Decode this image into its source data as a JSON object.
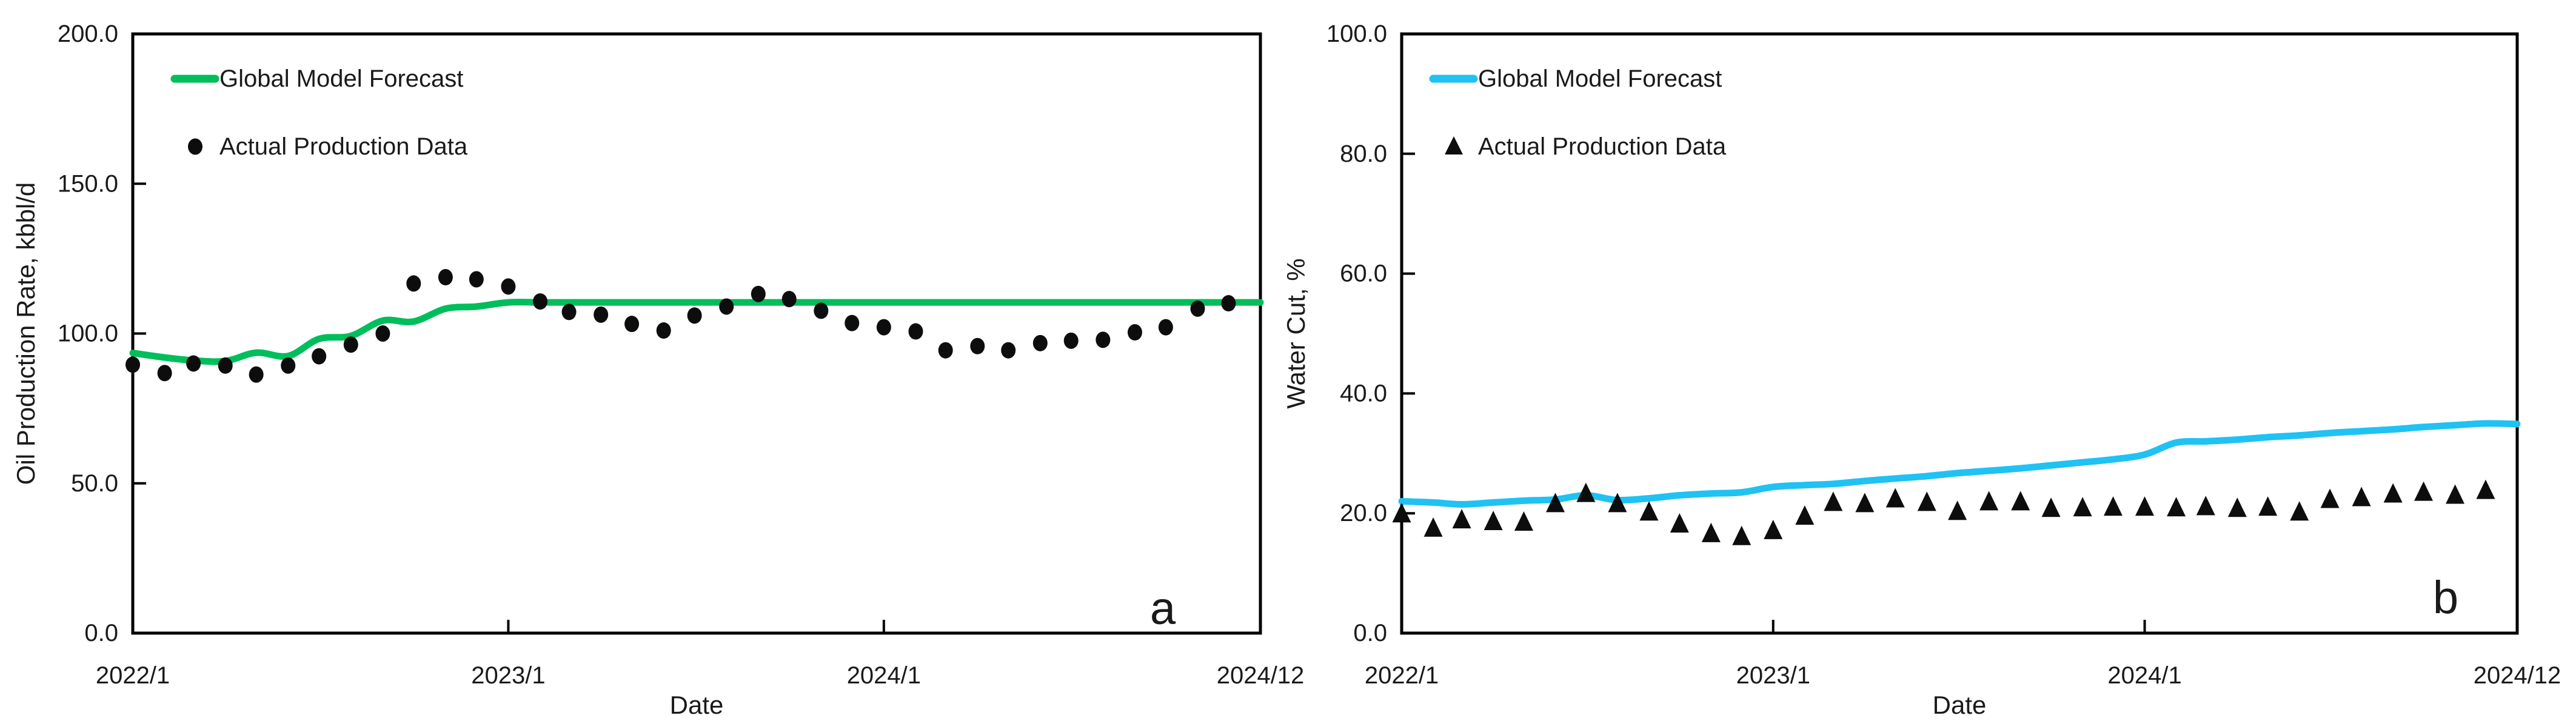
{
  "page": {
    "background": "#ffffff",
    "text_color": "#1a1a1a",
    "axis_color": "#000000"
  },
  "chart_data": [
    {
      "id": "a",
      "type": "line+scatter",
      "panel_label": "a",
      "xlabel": "Date",
      "ylabel": "Oil Production Rate, kbbl/d",
      "x_axis": {
        "start_month": "2022/1",
        "end_month": "2024/12",
        "n_points": 36,
        "tick_indices": [
          0,
          12,
          24,
          35
        ],
        "tick_labels": [
          "2022/1",
          "2023/1",
          "2024/1",
          "2024/12"
        ],
        "inner_tick_indices": [
          12,
          24
        ]
      },
      "y_axis": {
        "min": 0,
        "max": 200,
        "step": 50,
        "tick_labels": [
          "0.0",
          "50.0",
          "100.0",
          "150.0",
          "200.0"
        ],
        "inner_tick_values": [
          50,
          100,
          150
        ]
      },
      "legend": [
        {
          "label": "Global Model Forecast",
          "marker": "line",
          "color": "#00be5b"
        },
        {
          "label": "Actual Production Data",
          "marker": "circle",
          "color": "#0d0d0d"
        }
      ],
      "series": [
        {
          "name": "Global Model Forecast",
          "style": "line",
          "color": "#00be5b",
          "values": [
            93.5,
            92.0,
            91.0,
            90.8,
            93.6,
            92.5,
            98.2,
            99.2,
            104.3,
            104.0,
            108.3,
            109.0,
            110.4,
            110.4,
            110.4,
            110.4,
            110.4,
            110.4,
            110.4,
            110.4,
            110.4,
            110.4,
            110.4,
            110.4,
            110.4,
            110.4,
            110.4,
            110.4,
            110.4,
            110.4,
            110.4,
            110.4,
            110.4,
            110.4,
            110.4,
            110.4
          ],
          "edge_value": 110.4
        },
        {
          "name": "Actual Production Data",
          "style": "scatter-circle",
          "color": "#0d0d0d",
          "values": [
            89.6,
            86.8,
            90.0,
            89.3,
            86.3,
            89.3,
            92.4,
            96.3,
            100.0,
            116.7,
            118.8,
            118.1,
            115.7,
            110.7,
            107.2,
            106.3,
            103.2,
            101.0,
            106.0,
            109.0,
            113.2,
            111.5,
            107.6,
            103.5,
            102.1,
            100.7,
            94.4,
            95.8,
            94.4,
            96.8,
            97.6,
            97.9,
            100.4,
            102.1,
            108.3,
            110.1
          ]
        }
      ]
    },
    {
      "id": "b",
      "type": "line+scatter",
      "panel_label": "b",
      "xlabel": "Date",
      "ylabel": "Water Cut, %",
      "x_axis": {
        "start_month": "2022/1",
        "end_month": "2024/12",
        "n_points": 36,
        "tick_indices": [
          0,
          12,
          24,
          35
        ],
        "tick_labels": [
          "2022/1",
          "2023/1",
          "2024/1",
          "2024/12"
        ],
        "inner_tick_indices": [
          12,
          24
        ]
      },
      "y_axis": {
        "min": 0,
        "max": 100,
        "step": 20,
        "tick_labels": [
          "0.0",
          "20.0",
          "40.0",
          "60.0",
          "80.0",
          "100.0"
        ],
        "inner_tick_values": [
          20,
          40,
          60,
          80
        ]
      },
      "legend": [
        {
          "label": "Global Model Forecast",
          "marker": "line",
          "color": "#1fc2f2"
        },
        {
          "label": "Actual Production Data",
          "marker": "triangle",
          "color": "#0d0d0d"
        }
      ],
      "series": [
        {
          "name": "Global Model Forecast",
          "style": "line",
          "color": "#1fc2f2",
          "values": [
            22.0,
            21.8,
            21.5,
            21.8,
            22.1,
            22.3,
            23.0,
            22.2,
            22.5,
            23.0,
            23.3,
            23.5,
            24.4,
            24.7,
            24.9,
            25.4,
            25.8,
            26.2,
            26.7,
            27.1,
            27.5,
            28.0,
            28.5,
            29.0,
            29.8,
            31.8,
            32.0,
            32.3,
            32.7,
            33.0,
            33.4,
            33.7,
            34.0,
            34.4,
            34.7,
            35.0
          ],
          "edge_value": 34.9
        },
        {
          "name": "Actual Production Data",
          "style": "scatter-triangle",
          "color": "#0d0d0d",
          "values": [
            19.9,
            17.5,
            18.9,
            18.6,
            18.5,
            21.6,
            23.3,
            21.6,
            20.2,
            18.2,
            16.6,
            16.1,
            17.1,
            19.5,
            21.8,
            21.6,
            22.4,
            21.8,
            20.3,
            21.9,
            21.9,
            20.8,
            20.9,
            21.0,
            21.0,
            20.9,
            21.1,
            20.8,
            21.0,
            20.2,
            22.3,
            22.6,
            23.2,
            23.5,
            23.0,
            23.8
          ]
        }
      ]
    }
  ]
}
